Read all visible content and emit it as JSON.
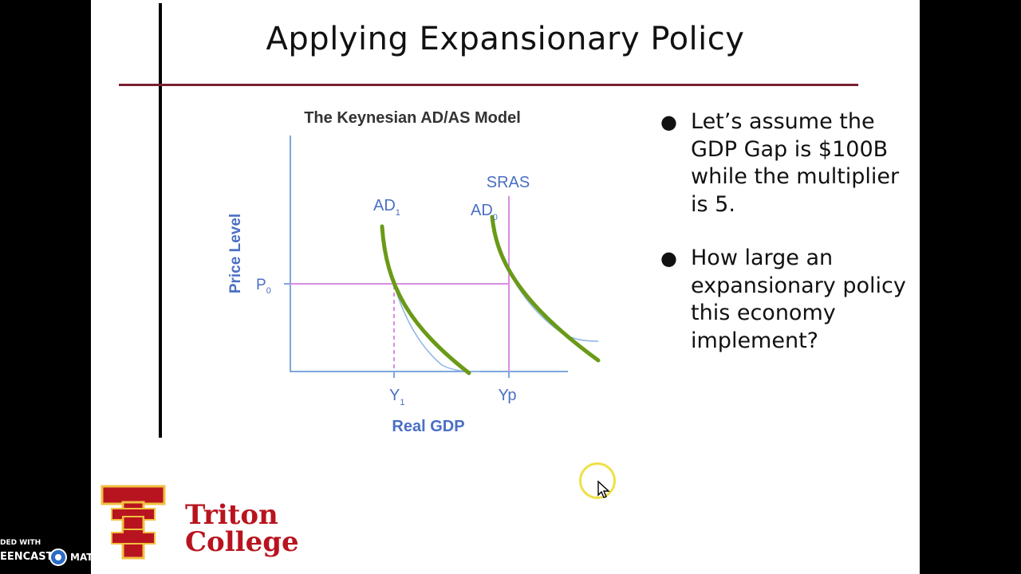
{
  "slide": {
    "title": "Applying Expansionary Policy"
  },
  "diagram": {
    "title": "The Keynesian AD/AS Model",
    "y_axis_label": "Price Level",
    "x_axis_label": "Real GDP",
    "p0_label": "P",
    "p0_sub": "0",
    "sras_label": "SRAS",
    "ad1_label": "AD",
    "ad1_sub": "1",
    "ad0_label": "AD",
    "ad0_sub": "0",
    "y1_label": "Y",
    "y1_sub": "1",
    "yp_label": "Yp",
    "colors": {
      "axis": "#7da7dc",
      "labels": "#4a6fc4",
      "curve_green": "#6a9a18",
      "guide": "#e08ee6"
    }
  },
  "bullets": [
    {
      "text": "Let’s assume the GDP Gap is $100B while the multiplier is 5."
    },
    {
      "text": "How large an expansionary policy this economy implement?"
    }
  ],
  "logo": {
    "line1": "Triton",
    "line2": "College",
    "color": "#b8141f"
  },
  "watermark": {
    "line1": "DED WITH",
    "line2": "EENCAST",
    "line3": "MATIC"
  }
}
